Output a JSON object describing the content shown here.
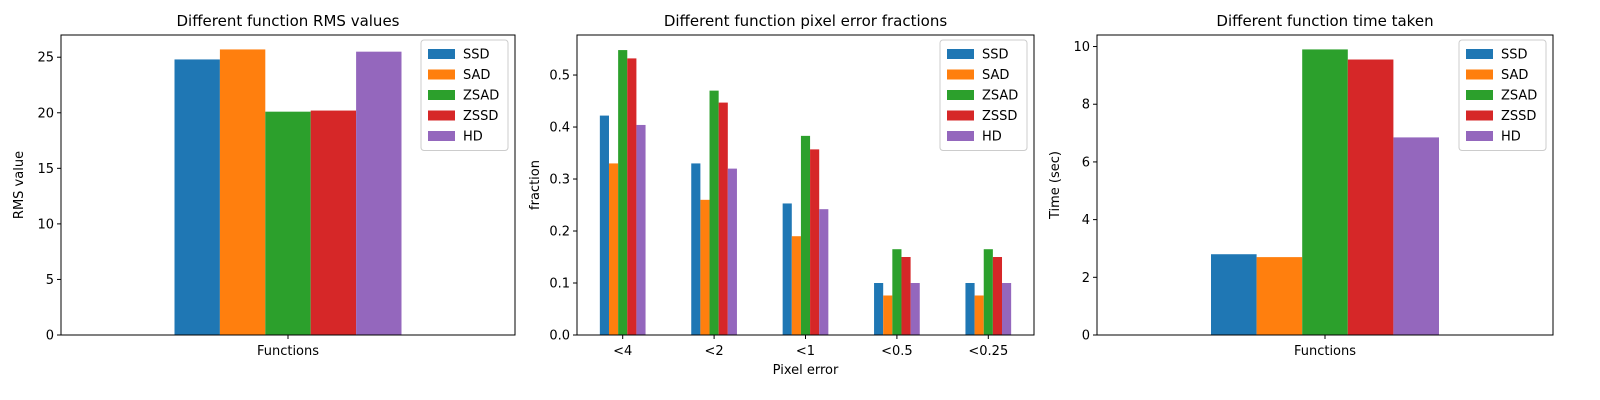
{
  "colors": {
    "SSD": "#1f77b4",
    "SAD": "#ff7f0e",
    "ZSAD": "#2ca02c",
    "ZSSD": "#d62728",
    "HD": "#9467bd"
  },
  "chart_data": [
    {
      "type": "bar",
      "title": "Different function RMS values",
      "xlabel": "",
      "ylabel": "RMS value",
      "categories": [
        "Functions"
      ],
      "ylim": [
        0,
        27
      ],
      "yticks": [
        0,
        5,
        10,
        15,
        20,
        25
      ],
      "ytick_labels": [
        "0",
        "5",
        "10",
        "15",
        "20",
        "25"
      ],
      "grid": false,
      "legend": "top-right",
      "series": [
        {
          "name": "SSD",
          "values": [
            24.8
          ]
        },
        {
          "name": "SAD",
          "values": [
            25.7
          ]
        },
        {
          "name": "ZSAD",
          "values": [
            20.1
          ]
        },
        {
          "name": "ZSSD",
          "values": [
            20.2
          ]
        },
        {
          "name": "HD",
          "values": [
            25.5
          ]
        }
      ]
    },
    {
      "type": "bar",
      "title": "Different function pixel error fractions",
      "xlabel": "Pixel error",
      "ylabel": "fraction",
      "categories": [
        "<4",
        "<2",
        "<1",
        "<0.5",
        "<0.25"
      ],
      "ylim": [
        0,
        0.577
      ],
      "yticks": [
        0,
        0.1,
        0.2,
        0.3,
        0.4,
        0.5
      ],
      "ytick_labels": [
        "0.0",
        "0.1",
        "0.2",
        "0.3",
        "0.4",
        "0.5"
      ],
      "grid": false,
      "legend": "top-right",
      "series": [
        {
          "name": "SSD",
          "values": [
            0.422,
            0.33,
            0.253,
            0.1,
            0.1
          ]
        },
        {
          "name": "SAD",
          "values": [
            0.33,
            0.26,
            0.19,
            0.076,
            0.076
          ]
        },
        {
          "name": "ZSAD",
          "values": [
            0.548,
            0.47,
            0.383,
            0.165,
            0.165
          ]
        },
        {
          "name": "ZSSD",
          "values": [
            0.532,
            0.447,
            0.357,
            0.15,
            0.15
          ]
        },
        {
          "name": "HD",
          "values": [
            0.404,
            0.32,
            0.242,
            0.1,
            0.1
          ]
        }
      ]
    },
    {
      "type": "bar",
      "title": "Different function time taken",
      "xlabel": "",
      "ylabel": "Time (sec)",
      "categories": [
        "Functions"
      ],
      "ylim": [
        0,
        10.4
      ],
      "yticks": [
        0,
        2,
        4,
        6,
        8,
        10
      ],
      "ytick_labels": [
        "0",
        "2",
        "4",
        "6",
        "8",
        "10"
      ],
      "grid": false,
      "legend": "top-right",
      "series": [
        {
          "name": "SSD",
          "values": [
            2.8
          ]
        },
        {
          "name": "SAD",
          "values": [
            2.7
          ]
        },
        {
          "name": "ZSAD",
          "values": [
            9.9
          ]
        },
        {
          "name": "ZSSD",
          "values": [
            9.55
          ]
        },
        {
          "name": "HD",
          "values": [
            6.85
          ]
        }
      ]
    }
  ]
}
